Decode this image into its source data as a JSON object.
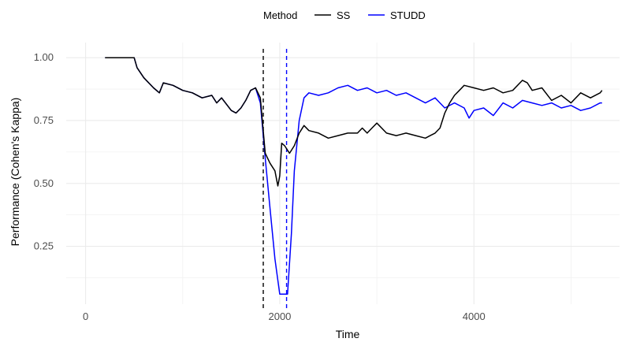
{
  "chart_data": {
    "type": "line",
    "xlabel": "Time",
    "ylabel": "Performance (Cohen's Kappa)",
    "xlim": [
      -200,
      5500
    ],
    "ylim": [
      0.02,
      1.06
    ],
    "x_ticks": [
      0,
      2000,
      4000
    ],
    "x_tick_labels": [
      "0",
      "2000",
      "4000"
    ],
    "y_ticks": [
      0.25,
      0.5,
      0.75,
      1.0
    ],
    "y_tick_labels": [
      "0.25",
      "0.50",
      "0.75",
      "1.00"
    ],
    "grid": true,
    "legend": {
      "title": "Method",
      "position": "top"
    },
    "series": [
      {
        "name": "SS",
        "color": "#000000",
        "x": [
          200,
          500,
          530,
          600,
          700,
          760,
          800,
          900,
          1000,
          1100,
          1200,
          1300,
          1350,
          1400,
          1500,
          1550,
          1600,
          1650,
          1700,
          1750,
          1800,
          1820,
          1850,
          1900,
          1950,
          1980,
          2000,
          2020,
          2050,
          2100,
          2150,
          2200,
          2250,
          2300,
          2400,
          2500,
          2600,
          2700,
          2800,
          2850,
          2900,
          2950,
          3000,
          3100,
          3200,
          3300,
          3400,
          3500,
          3550,
          3600,
          3650,
          3700,
          3750,
          3800,
          3850,
          3900,
          4000,
          4100,
          4200,
          4300,
          4400,
          4500,
          4550,
          4600,
          4700,
          4800,
          4900,
          5000,
          5100,
          5200,
          5300,
          5320
        ],
        "y": [
          1.0,
          1.0,
          0.96,
          0.92,
          0.88,
          0.86,
          0.9,
          0.89,
          0.87,
          0.86,
          0.84,
          0.85,
          0.82,
          0.84,
          0.79,
          0.78,
          0.8,
          0.83,
          0.87,
          0.88,
          0.84,
          0.75,
          0.62,
          0.58,
          0.55,
          0.49,
          0.53,
          0.66,
          0.65,
          0.62,
          0.65,
          0.7,
          0.73,
          0.71,
          0.7,
          0.68,
          0.69,
          0.7,
          0.7,
          0.72,
          0.7,
          0.72,
          0.74,
          0.7,
          0.69,
          0.7,
          0.69,
          0.68,
          0.69,
          0.7,
          0.72,
          0.78,
          0.82,
          0.85,
          0.87,
          0.89,
          0.88,
          0.87,
          0.88,
          0.86,
          0.87,
          0.91,
          0.9,
          0.87,
          0.88,
          0.83,
          0.85,
          0.82,
          0.86,
          0.84,
          0.86,
          0.87
        ]
      },
      {
        "name": "STUDD",
        "color": "#0000ff",
        "x": [
          200,
          500,
          530,
          600,
          700,
          760,
          800,
          900,
          1000,
          1100,
          1200,
          1300,
          1350,
          1400,
          1500,
          1550,
          1600,
          1650,
          1700,
          1750,
          1800,
          1850,
          1900,
          1950,
          2000,
          2050,
          2080,
          2120,
          2150,
          2200,
          2250,
          2300,
          2400,
          2500,
          2600,
          2700,
          2800,
          2900,
          3000,
          3100,
          3200,
          3300,
          3400,
          3500,
          3600,
          3700,
          3800,
          3900,
          3950,
          4000,
          4100,
          4200,
          4300,
          4400,
          4500,
          4600,
          4700,
          4800,
          4900,
          5000,
          5100,
          5200,
          5300,
          5320
        ],
        "y": [
          1.0,
          1.0,
          0.96,
          0.92,
          0.88,
          0.86,
          0.9,
          0.89,
          0.87,
          0.86,
          0.84,
          0.85,
          0.82,
          0.84,
          0.79,
          0.78,
          0.8,
          0.83,
          0.87,
          0.88,
          0.82,
          0.6,
          0.4,
          0.2,
          0.06,
          0.06,
          0.06,
          0.3,
          0.55,
          0.75,
          0.84,
          0.86,
          0.85,
          0.86,
          0.88,
          0.89,
          0.87,
          0.88,
          0.86,
          0.87,
          0.85,
          0.86,
          0.84,
          0.82,
          0.84,
          0.8,
          0.82,
          0.8,
          0.76,
          0.79,
          0.8,
          0.77,
          0.82,
          0.8,
          0.83,
          0.82,
          0.81,
          0.82,
          0.8,
          0.81,
          0.79,
          0.8,
          0.82,
          0.82
        ]
      }
    ],
    "vlines": [
      {
        "x": 1830,
        "color": "#000000",
        "style": "dashed"
      },
      {
        "x": 2070,
        "color": "#0000ff",
        "style": "dashed"
      }
    ]
  }
}
